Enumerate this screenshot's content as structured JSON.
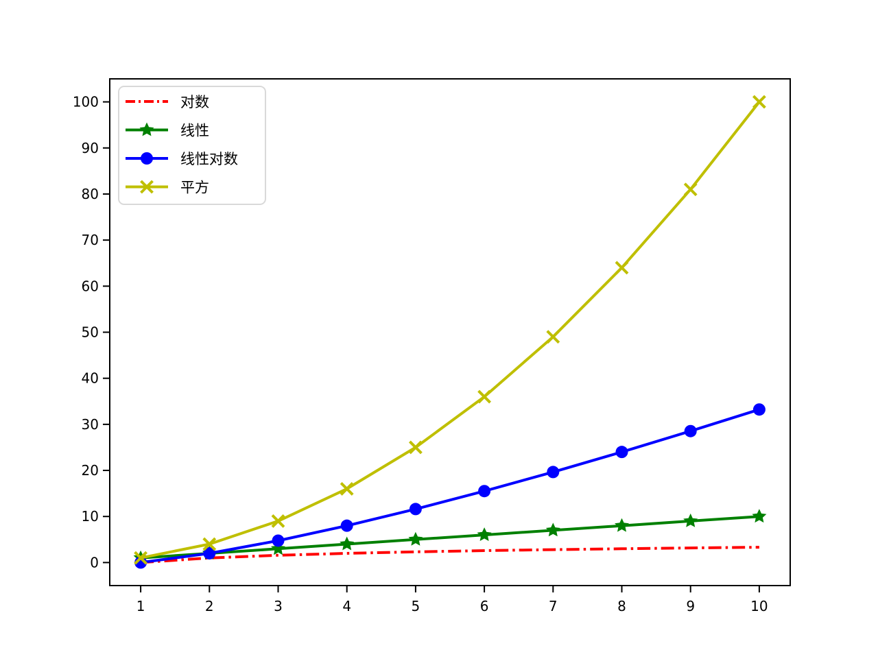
{
  "figure": {
    "background": "#ffffff",
    "axis_color": "#000000",
    "tick_label_color": "#000000"
  },
  "chart_data": {
    "type": "line",
    "title": "",
    "xlabel": "",
    "ylabel": "",
    "grid": false,
    "x": [
      1,
      2,
      3,
      4,
      5,
      6,
      7,
      8,
      9,
      10
    ],
    "series": [
      {
        "id": "log",
        "label": "对数",
        "color": "#ff0000",
        "linestyle": "dashdot",
        "marker": "none",
        "values": [
          0,
          1,
          1.585,
          2,
          2.322,
          2.585,
          2.807,
          3,
          3.17,
          3.322
        ]
      },
      {
        "id": "linear",
        "label": "线性",
        "color": "#008000",
        "linestyle": "solid",
        "marker": "star",
        "values": [
          1,
          2,
          3,
          4,
          5,
          6,
          7,
          8,
          9,
          10
        ]
      },
      {
        "id": "nlogn",
        "label": "线性对数",
        "color": "#0000ff",
        "linestyle": "solid",
        "marker": "circle",
        "values": [
          0,
          2,
          4.755,
          8,
          11.61,
          15.51,
          19.651,
          24,
          28.529,
          33.219
        ]
      },
      {
        "id": "square",
        "label": "平方",
        "color": "#bfbf00",
        "linestyle": "solid",
        "marker": "x",
        "values": [
          1,
          4,
          9,
          16,
          25,
          36,
          49,
          64,
          81,
          100
        ]
      }
    ],
    "x_ticks": [
      1,
      2,
      3,
      4,
      5,
      6,
      7,
      8,
      9,
      10
    ],
    "y_ticks": [
      0,
      10,
      20,
      30,
      40,
      50,
      60,
      70,
      80,
      90,
      100
    ],
    "xlim": [
      0.55,
      10.45
    ],
    "ylim": [
      -5,
      105
    ],
    "legend": {
      "position": "upper-left",
      "border_color": "#d9d9d9",
      "background": "#ffffff"
    }
  }
}
